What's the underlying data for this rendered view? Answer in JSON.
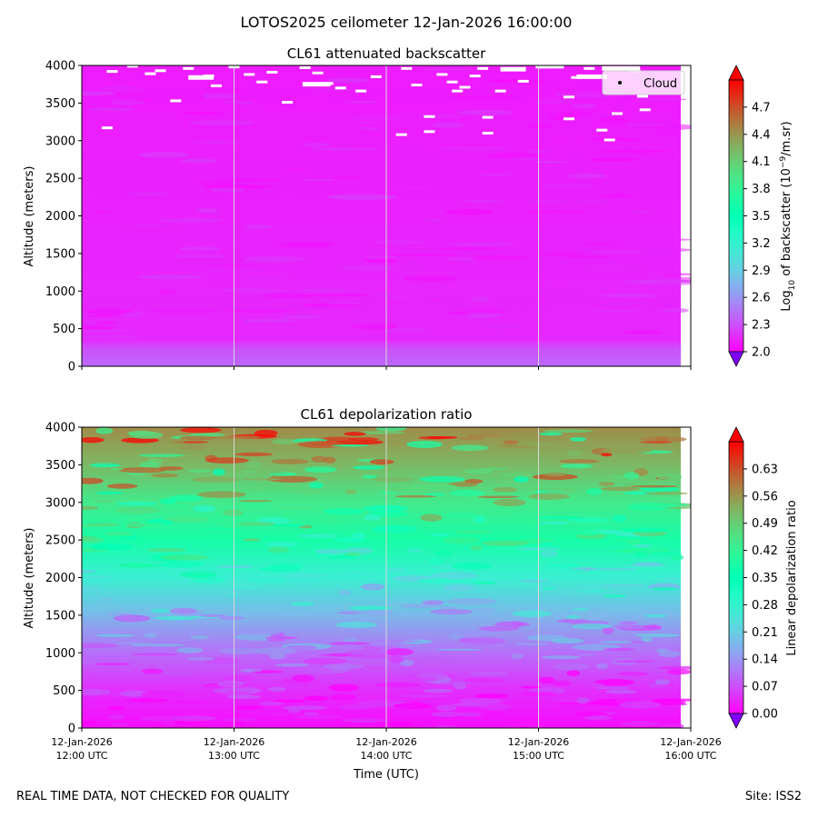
{
  "figure": {
    "suptitle": "LOTOS2025 ceilometer 12-Jan-2026 16:00:00",
    "footer_left": "REAL TIME DATA, NOT CHECKED FOR QUALITY",
    "footer_right": "Site: ISS2"
  },
  "chart_data": [
    {
      "type": "heatmap",
      "title": "CL61 attenuated backscatter",
      "ylabel": "Altitude (meters)",
      "xlabel": "",
      "x_range": [
        "12-Jan-2026 12:00 UTC",
        "12-Jan-2026 16:00 UTC"
      ],
      "ylim": [
        0,
        4000
      ],
      "yticks": [
        0,
        500,
        1000,
        1500,
        2000,
        2500,
        3000,
        3500,
        4000
      ],
      "xtick_labels": [],
      "grid": "vertical lines at each hour",
      "colormap": "rainbow",
      "colorbar": {
        "label_parts": [
          "Log",
          "10",
          " of backscatter (10",
          "−9",
          "/m.sr)"
        ],
        "range": [
          2.0,
          5.0
        ],
        "ticks": [
          "2.0",
          "2.3",
          "2.6",
          "2.9",
          "3.2",
          "3.5",
          "3.8",
          "4.1",
          "4.4",
          "4.7"
        ],
        "extend": "both"
      },
      "legend": {
        "position": "top-right",
        "entries": [
          "Cloud"
        ]
      },
      "field": {
        "description_values": "backscatter mostly near 2.0–2.4 (purple) at all altitudes, slightly higher (blue) below 250 m",
        "surface_value": 2.4,
        "background_value": 2.1
      },
      "cloud_detections": [
        {
          "time": "12:10",
          "altitude": 3170
        },
        {
          "time": "12:12",
          "altitude": 3920
        },
        {
          "time": "12:20",
          "altitude": 3990
        },
        {
          "time": "12:27",
          "altitude": 3890
        },
        {
          "time": "12:31",
          "altitude": 3930
        },
        {
          "time": "12:37",
          "altitude": 3530
        },
        {
          "time": "12:42",
          "altitude": 3960
        },
        {
          "time": "12:50",
          "altitude": 3860
        },
        {
          "time": "12:53",
          "altitude": 3730
        },
        {
          "time": "13:00",
          "altitude": 3980
        },
        {
          "time": "13:06",
          "altitude": 3880
        },
        {
          "time": "13:11",
          "altitude": 3780
        },
        {
          "time": "13:15",
          "altitude": 3910
        },
        {
          "time": "13:21",
          "altitude": 3510
        },
        {
          "time": "13:28",
          "altitude": 3970
        },
        {
          "time": "13:33",
          "altitude": 3900
        },
        {
          "time": "13:37",
          "altitude": 3760
        },
        {
          "time": "13:42",
          "altitude": 3700
        },
        {
          "time": "13:50",
          "altitude": 3660
        },
        {
          "time": "13:56",
          "altitude": 3850
        },
        {
          "time": "14:06",
          "altitude": 3080
        },
        {
          "time": "14:08",
          "altitude": 3960
        },
        {
          "time": "14:12",
          "altitude": 3740
        },
        {
          "time": "14:17",
          "altitude": 3120
        },
        {
          "time": "14:17",
          "altitude": 3320
        },
        {
          "time": "14:22",
          "altitude": 3880
        },
        {
          "time": "14:26",
          "altitude": 3780
        },
        {
          "time": "14:28",
          "altitude": 3660
        },
        {
          "time": "14:31",
          "altitude": 3710
        },
        {
          "time": "14:35",
          "altitude": 3860
        },
        {
          "time": "14:38",
          "altitude": 3960
        },
        {
          "time": "14:40",
          "altitude": 3310
        },
        {
          "time": "14:40",
          "altitude": 3100
        },
        {
          "time": "14:45",
          "altitude": 3660
        },
        {
          "time": "14:50",
          "altitude": 3940
        },
        {
          "time": "14:54",
          "altitude": 3790
        },
        {
          "time": "15:01",
          "altitude": 3980
        },
        {
          "time": "15:12",
          "altitude": 3580
        },
        {
          "time": "15:12",
          "altitude": 3290
        },
        {
          "time": "15:15",
          "altitude": 3840
        },
        {
          "time": "15:20",
          "altitude": 3960
        },
        {
          "time": "15:25",
          "altitude": 3140
        },
        {
          "time": "15:28",
          "altitude": 3010
        },
        {
          "time": "15:31",
          "altitude": 3360
        },
        {
          "time": "15:38",
          "altitude": 3930
        },
        {
          "time": "15:41",
          "altitude": 3590
        },
        {
          "time": "15:42",
          "altitude": 3410
        }
      ],
      "cloud_bands": [
        {
          "time_start": "12:42",
          "time_end": "12:52",
          "altitude": 3840
        },
        {
          "time_start": "13:27",
          "time_end": "13:38",
          "altitude": 3750
        },
        {
          "time_start": "14:45",
          "time_end": "14:55",
          "altitude": 3950
        },
        {
          "time_start": "15:00",
          "time_end": "15:10",
          "altitude": 3990
        },
        {
          "time_start": "15:15",
          "time_end": "15:27",
          "altitude": 3850
        },
        {
          "time_start": "15:25",
          "time_end": "15:40",
          "altitude": 3960
        }
      ]
    },
    {
      "type": "heatmap",
      "title": "CL61 depolarization ratio",
      "ylabel": "Altitude (meters)",
      "xlabel": "Time (UTC)",
      "x_range": [
        "12-Jan-2026 12:00 UTC",
        "12-Jan-2026 16:00 UTC"
      ],
      "ylim": [
        0,
        4000
      ],
      "yticks": [
        0,
        500,
        1000,
        1500,
        2000,
        2500,
        3000,
        3500,
        4000
      ],
      "xtick_labels": [
        {
          "date": "12-Jan-2026",
          "time": "12:00 UTC"
        },
        {
          "date": "12-Jan-2026",
          "time": "13:00 UTC"
        },
        {
          "date": "12-Jan-2026",
          "time": "14:00 UTC"
        },
        {
          "date": "12-Jan-2026",
          "time": "15:00 UTC"
        },
        {
          "date": "12-Jan-2026",
          "time": "16:00 UTC"
        }
      ],
      "grid": "vertical lines at each hour",
      "colormap": "rainbow",
      "colorbar": {
        "label": "Linear depolarization ratio",
        "range": [
          0.0,
          0.7
        ],
        "ticks": [
          "0.00",
          "0.07",
          "0.14",
          "0.21",
          "0.28",
          "0.35",
          "0.42",
          "0.49",
          "0.56",
          "0.63"
        ],
        "extend": "both"
      },
      "profile": [
        {
          "altitude": 0,
          "value": 0.01
        },
        {
          "altitude": 500,
          "value": 0.04
        },
        {
          "altitude": 1000,
          "value": 0.1
        },
        {
          "altitude": 1500,
          "value": 0.18
        },
        {
          "altitude": 2000,
          "value": 0.27
        },
        {
          "altitude": 2500,
          "value": 0.38
        },
        {
          "altitude": 3000,
          "value": 0.44
        },
        {
          "altitude": 3500,
          "value": 0.52
        },
        {
          "altitude": 4000,
          "value": 0.57
        }
      ]
    }
  ]
}
